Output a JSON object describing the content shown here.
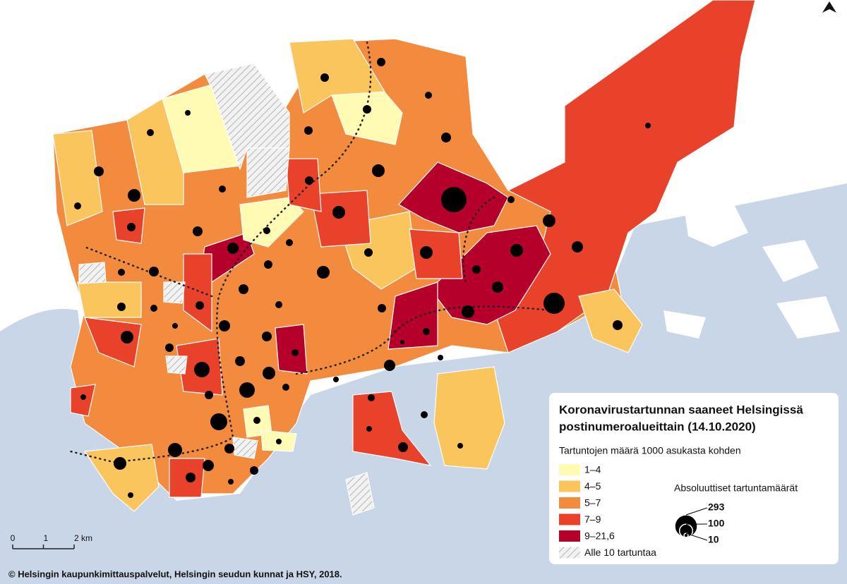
{
  "map": {
    "title_lines": [
      "Koronavirustartunnan saaneet Helsingissä",
      "postinumeroalueittain (14.10.2020)"
    ],
    "legend_title": "Tartuntojen määrä 1000 asukasta kohden",
    "classes": [
      {
        "label": "1–4",
        "color": "#fffab4"
      },
      {
        "label": "4–5",
        "color": "#fbc55e"
      },
      {
        "label": "5–7",
        "color": "#f28b3e"
      },
      {
        "label": "7–9",
        "color": "#e8432a"
      },
      {
        "label": "9–21,6",
        "color": "#b4002a"
      }
    ],
    "hatch_label": "Alle 10 tartuntaa",
    "bubble_title": "Absoluuttiset tartuntamäärät",
    "bubbles": [
      293,
      100,
      10
    ],
    "scale": {
      "lim": [
        0,
        2
      ],
      "ticks": [
        0,
        1,
        {
          "value": 2,
          "label": "2 km"
        }
      ]
    },
    "credit": "© Helsingin kaupunkimittauspalvelut, Helsingin seudun kunnat ja HSY, 2018."
  }
}
